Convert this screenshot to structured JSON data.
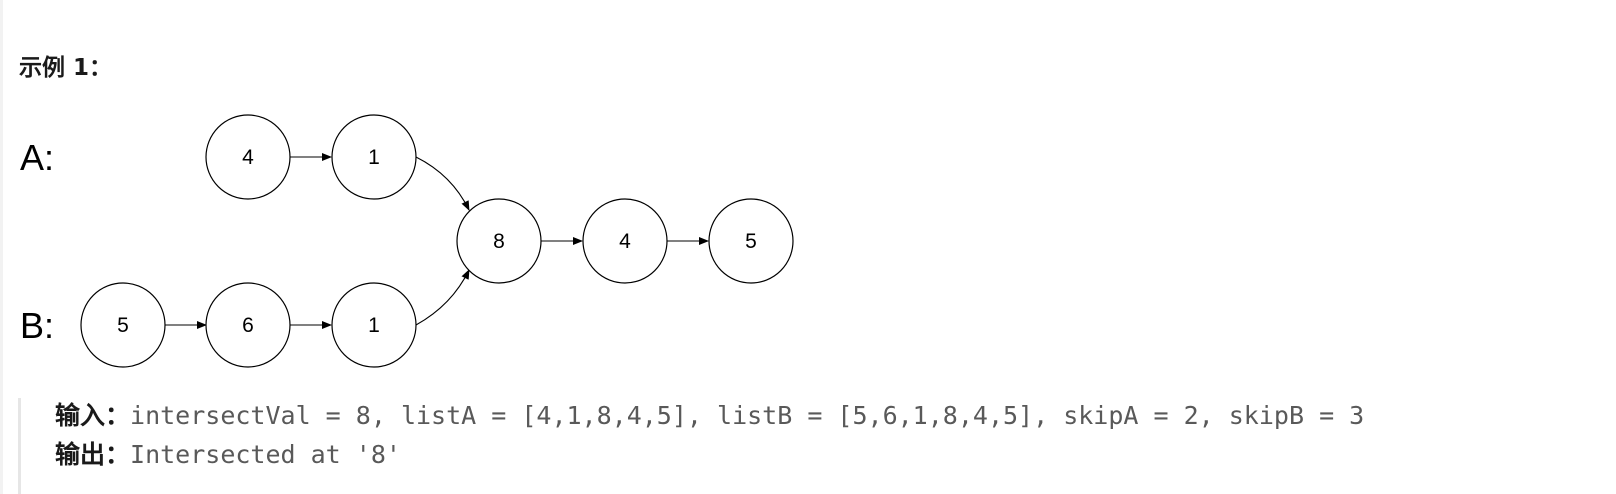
{
  "heading": "示例 1：",
  "diagram": {
    "labels": {
      "a": "A:",
      "b": "B:"
    },
    "listA": [
      "4",
      "1"
    ],
    "listB": [
      "5",
      "6",
      "1"
    ],
    "shared": [
      "8",
      "4",
      "5"
    ]
  },
  "example": {
    "input_key": "输入：",
    "input_value": "intersectVal = 8, listA = [4,1,8,4,5], listB = [5,6,1,8,4,5], skipA = 2, skipB = 3",
    "output_key": "输出：",
    "output_value": "Intersected at '8'"
  }
}
